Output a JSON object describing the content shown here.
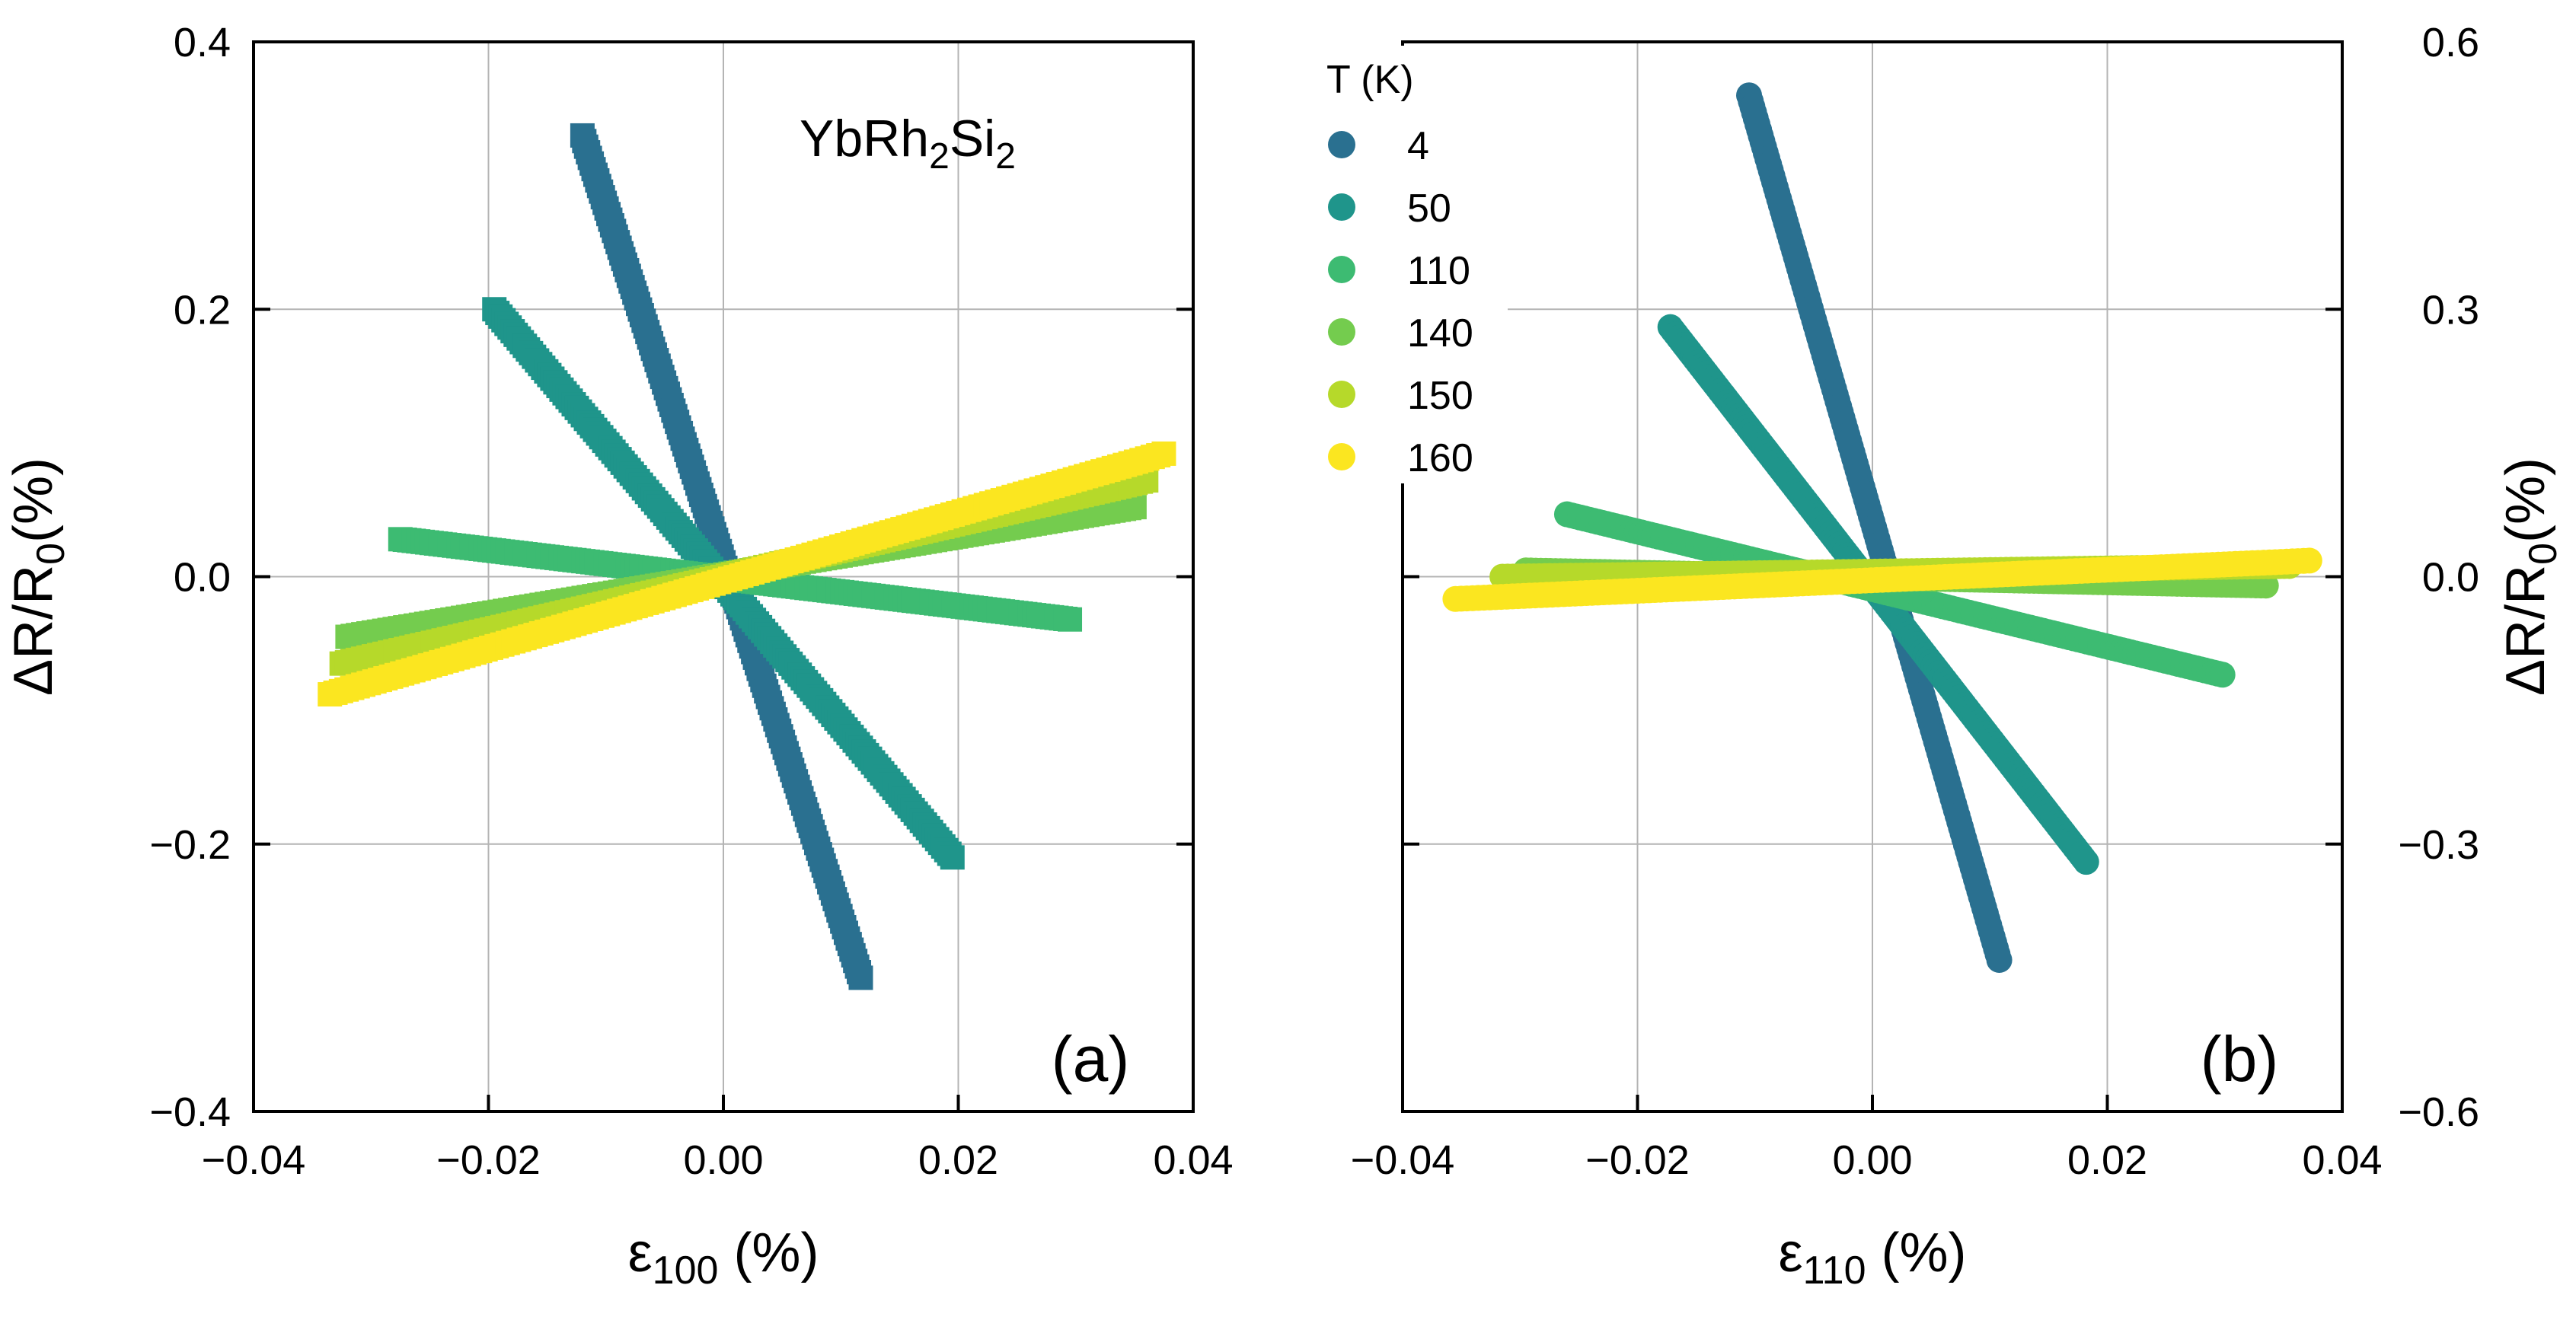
{
  "compound": {
    "base1": "YbRh",
    "sub1": "2",
    "base2": "Si",
    "sub2": "2"
  },
  "legend": {
    "title": "T (K)",
    "entries": [
      {
        "label": "4",
        "color": "#2a7090"
      },
      {
        "label": "50",
        "color": "#1f958b"
      },
      {
        "label": "110",
        "color": "#3dbb72"
      },
      {
        "label": "140",
        "color": "#74cc4e"
      },
      {
        "label": "150",
        "color": "#b6d92a"
      },
      {
        "label": "160",
        "color": "#fbe620"
      }
    ]
  },
  "chart_data": [
    {
      "type": "scatter",
      "panel_label": "(a)",
      "xlabel": {
        "symbol": "ε",
        "sub": "100",
        "unit": " (%)"
      },
      "ylabel": {
        "prefix": "ΔR/R",
        "sub": "0",
        "unit": "(%)"
      },
      "ylabel_side": "left",
      "xlim": [
        -0.04,
        0.04
      ],
      "ylim": [
        -0.4,
        0.4
      ],
      "xticks": [
        "−0.04",
        "−0.02",
        "0.00",
        "0.02",
        "0.04"
      ],
      "yticks": [
        "−0.4",
        "−0.2",
        "0.0",
        "0.2",
        "0.4"
      ],
      "grid": true,
      "marker": "square",
      "series": [
        {
          "name": "4",
          "x": [
            -0.012,
            0.0117
          ],
          "y": [
            0.33,
            -0.3
          ]
        },
        {
          "name": "50",
          "x": [
            -0.0195,
            0.0195
          ],
          "y": [
            0.2,
            -0.21
          ]
        },
        {
          "name": "110",
          "x": [
            -0.0275,
            0.0295
          ],
          "y": [
            0.028,
            -0.032
          ]
        },
        {
          "name": "140",
          "x": [
            -0.032,
            0.035
          ],
          "y": [
            -0.045,
            0.052
          ]
        },
        {
          "name": "150",
          "x": [
            -0.0325,
            0.036
          ],
          "y": [
            -0.065,
            0.072
          ]
        },
        {
          "name": "160",
          "x": [
            -0.0335,
            0.0375
          ],
          "y": [
            -0.088,
            0.092
          ]
        }
      ]
    },
    {
      "type": "scatter",
      "panel_label": "(b)",
      "xlabel": {
        "symbol": "ε",
        "sub": "110",
        "unit": " (%)"
      },
      "ylabel": {
        "prefix": "ΔR/R",
        "sub": "0",
        "unit": "(%)"
      },
      "ylabel_side": "right",
      "xlim": [
        -0.04,
        0.04
      ],
      "ylim": [
        -0.6,
        0.6
      ],
      "xticks": [
        "−0.04",
        "−0.02",
        "0.00",
        "0.02",
        "0.04"
      ],
      "yticks": [
        "−0.6",
        "−0.3",
        "0.0",
        "0.3",
        "0.6"
      ],
      "grid": true,
      "marker": "circle",
      "series": [
        {
          "name": "4",
          "x": [
            -0.0105,
            0.0108
          ],
          "y": [
            0.54,
            -0.43
          ]
        },
        {
          "name": "50",
          "x": [
            -0.0172,
            0.0182
          ],
          "y": [
            0.28,
            -0.32
          ]
        },
        {
          "name": "110",
          "x": [
            -0.026,
            0.0298
          ],
          "y": [
            0.07,
            -0.11
          ]
        },
        {
          "name": "140",
          "x": [
            -0.0295,
            0.0335
          ],
          "y": [
            0.007,
            -0.01
          ]
        },
        {
          "name": "150",
          "x": [
            -0.0315,
            0.0355
          ],
          "y": [
            0.0,
            0.012
          ]
        },
        {
          "name": "160",
          "x": [
            -0.0355,
            0.0372
          ],
          "y": [
            -0.025,
            0.018
          ]
        }
      ]
    }
  ]
}
